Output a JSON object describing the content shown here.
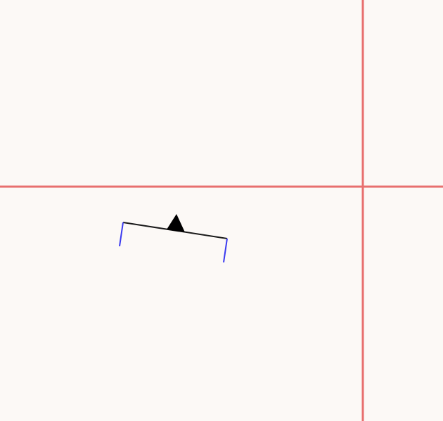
{
  "canvas": {
    "background_color": "#fcf9f6"
  },
  "guides": {
    "color": "#e8706f"
  },
  "annotation": {
    "bracket_color": "#1a1a1a",
    "tick_color": "#3a3af0",
    "marker_color": "#000000",
    "marker_shape": "triangle-up"
  }
}
